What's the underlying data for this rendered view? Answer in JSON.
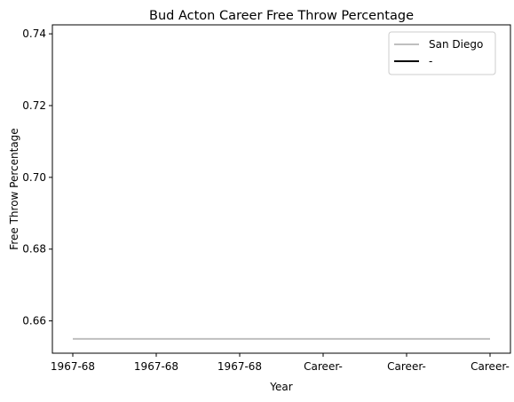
{
  "chart_data": {
    "type": "line",
    "title": "Bud Acton Career Free Throw Percentage",
    "xlabel": "Year",
    "ylabel": "Free Throw Percentage",
    "categories": [
      "1967-68",
      "1967-68",
      "1967-68",
      "Career-",
      "Career-",
      "Career-"
    ],
    "ylim": [
      0.651,
      0.7425
    ],
    "yticks": [
      0.66,
      0.68,
      0.7,
      0.72,
      0.74
    ],
    "ytick_labels": [
      "0.66",
      "0.68",
      "0.70",
      "0.72",
      "0.74"
    ],
    "grid": false,
    "legend_position": "top-right",
    "series": [
      {
        "name": "San Diego",
        "color": "#bfbfbf",
        "values": [
          0.655,
          0.655,
          0.655,
          0.655,
          0.655,
          0.655
        ]
      },
      {
        "name": "-",
        "color": "#000000",
        "values": [
          null,
          null,
          null,
          null,
          null,
          null
        ]
      }
    ]
  }
}
